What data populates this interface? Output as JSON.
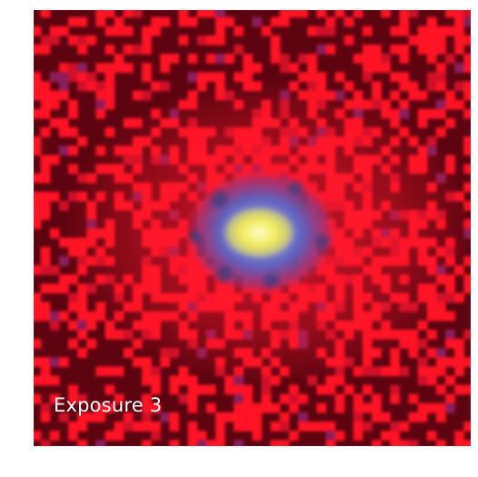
{
  "image": {
    "caption": "Exposure 3",
    "palette": {
      "background_dark": "#5e0410",
      "speckle_red": "#ff1325",
      "core_blue": "#6f76cf",
      "core_yellow": "#f7f16c"
    }
  }
}
